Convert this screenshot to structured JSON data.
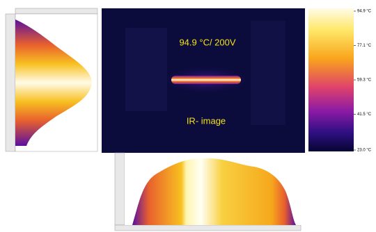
{
  "image": {
    "annotation": "94.9 °C/ 200V",
    "caption": "IR- image"
  },
  "colorbar": {
    "lim": [
      23.0,
      94.9
    ],
    "ticks": [
      {
        "value": 94.9,
        "label": "94.9 °C"
      },
      {
        "value": 77.1,
        "label": "77.1 °C"
      },
      {
        "value": 59.3,
        "label": "59.3 °C"
      },
      {
        "value": 41.5,
        "label": "41.5 °C"
      },
      {
        "value": 23.0,
        "label": "23.0 °C"
      }
    ]
  }
}
